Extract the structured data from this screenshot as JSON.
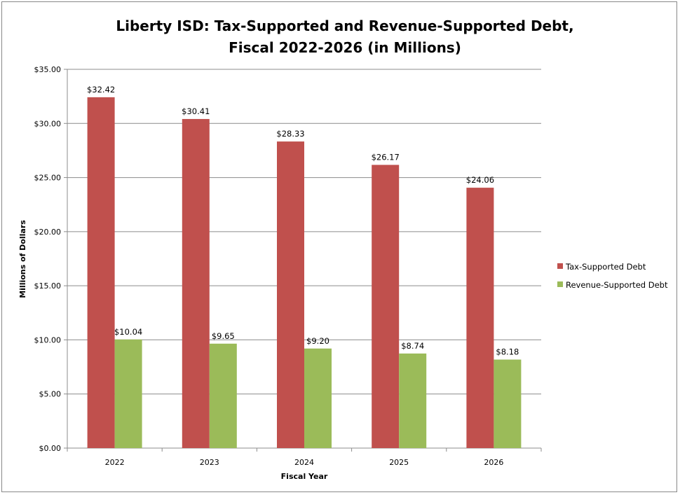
{
  "chart_data": {
    "type": "bar",
    "title_lines": [
      "Liberty ISD: Tax-Supported and Revenue-Supported Debt,",
      "Fiscal 2022-2026 (in Millions)"
    ],
    "xlabel": "Fiscal Year",
    "ylabel": "Millions of Dollars",
    "categories": [
      "2022",
      "2023",
      "2024",
      "2025",
      "2026"
    ],
    "ylim": [
      0,
      35
    ],
    "yticks": [
      0,
      5,
      10,
      15,
      20,
      25,
      30,
      35
    ],
    "ytick_labels": [
      "$0.00",
      "$5.00",
      "$10.00",
      "$15.00",
      "$20.00",
      "$25.00",
      "$30.00",
      "$35.00"
    ],
    "grid": true,
    "legend_position": "right",
    "series": [
      {
        "name": "Tax-Supported Debt",
        "color": "#C0504D",
        "values": [
          32.42,
          30.41,
          28.33,
          26.17,
          24.06
        ],
        "labels": [
          "$32.42",
          "$30.41",
          "$28.33",
          "$26.17",
          "$24.06"
        ]
      },
      {
        "name": "Revenue-Supported Debt",
        "color": "#9BBB59",
        "values": [
          10.04,
          9.65,
          9.2,
          8.74,
          8.18
        ],
        "labels": [
          "$10.04",
          "$9.65",
          "$9.20",
          "$8.74",
          "$8.18"
        ]
      }
    ]
  }
}
